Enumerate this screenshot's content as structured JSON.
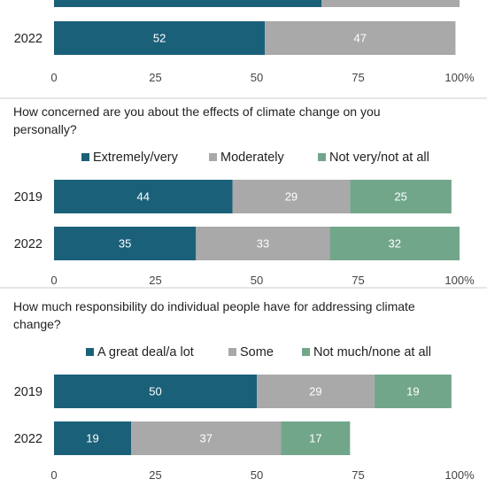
{
  "colors": {
    "dark": "#1b6079",
    "gray": "#a9a9a9",
    "green": "#72a68b",
    "divider": "#cccccc"
  },
  "chart_data": [
    {
      "type": "bar",
      "orientation": "horizontal",
      "stacked": true,
      "title": "",
      "categories": [
        "2022"
      ],
      "series": [
        {
          "values": [
            52
          ]
        },
        {
          "values": [
            47
          ]
        }
      ],
      "partial_top_bar": [
        66,
        34
      ],
      "xlim": [
        0,
        100
      ],
      "xticks": [
        "0",
        "25",
        "50",
        "75",
        "100%"
      ]
    },
    {
      "type": "bar",
      "orientation": "horizontal",
      "stacked": true,
      "title": "How concerned are you about the effects of climate change on you personally?",
      "title_lines": [
        "How concerned are you about the effects of climate change on you",
        "personally?"
      ],
      "categories": [
        "2019",
        "2022"
      ],
      "series": [
        {
          "name": "Extremely/very",
          "values": [
            44,
            35
          ]
        },
        {
          "name": "Moderately",
          "values": [
            29,
            33
          ]
        },
        {
          "name": "Not very/not at all",
          "values": [
            25,
            32
          ]
        }
      ],
      "xlim": [
        0,
        100
      ],
      "xticks": [
        "0",
        "25",
        "50",
        "75",
        "100%"
      ],
      "legend": "top"
    },
    {
      "type": "bar",
      "orientation": "horizontal",
      "stacked": true,
      "title": "How much responsibility do individual people have for addressing climate change?",
      "title_lines": [
        "How much responsibility do individual people have for addressing climate",
        "change?"
      ],
      "categories": [
        "2019",
        "2022"
      ],
      "series": [
        {
          "name": "A great deal/a lot",
          "values": [
            50,
            19
          ]
        },
        {
          "name": "Some",
          "values": [
            29,
            37
          ]
        },
        {
          "name": "Not much/none at all",
          "values": [
            19,
            17
          ]
        }
      ],
      "xlim": [
        0,
        100
      ],
      "xticks": [
        "0",
        "25",
        "50",
        "75",
        "100%"
      ],
      "legend": "top"
    }
  ]
}
